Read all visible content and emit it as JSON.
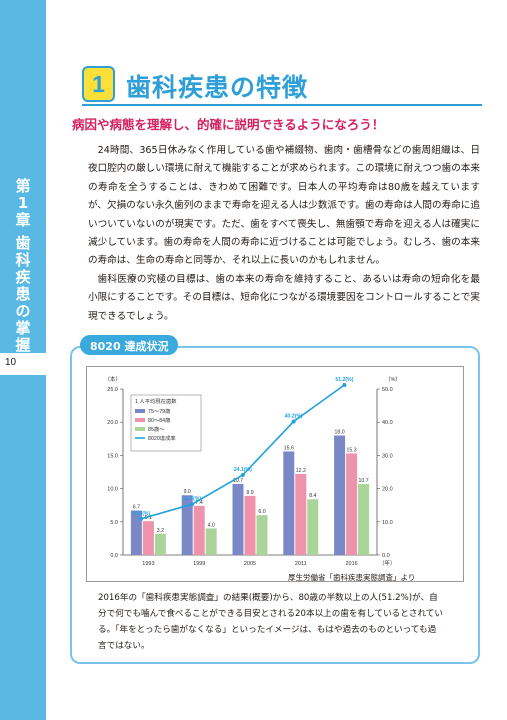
{
  "sidebar": {
    "chapter_chars": [
      "第",
      "1",
      "章",
      "",
      "歯",
      "科",
      "疾",
      "患",
      "の",
      "掌",
      "握"
    ],
    "page_number": "10"
  },
  "heading": {
    "number": "1",
    "title": "歯科疾患の特徴",
    "subtitle": "病因や病態を理解し、的確に説明できるようになろう！"
  },
  "body": {
    "paragraph1": "24時間、365日休みなく作用している歯や補綴物、歯肉・歯槽骨などの歯周組織は、日夜口腔内の厳しい環境に耐えて機能することが求められます。この環境に耐えつつ歯の本来の寿命を全うすることは、きわめて困難です。日本人の平均寿命は80歳を越えていますが、欠損のない永久歯列のままで寿命を迎える人は少数派です。歯の寿命は人間の寿命に追いついていないのが現実です。ただ、歯をすべて喪失し、無歯顎で寿命を迎える人は確実に減少しています。歯の寿命を人間の寿命に近づけることは可能でしょう。むしろ、歯の本来の寿命は、生命の寿命と同等か、それ以上に長いのかもしれません。",
    "paragraph2": "歯科医療の究極の目標は、歯の本来の寿命を維持すること、あるいは寿命の短命化を最小限にすることです。その目標は、短命化につながる環境要因をコントロールすることで実現できるでしょう。"
  },
  "figure": {
    "box_label": "8020 達成状況",
    "source": "厚生労働省「歯科疾患実態調査」より",
    "caption": "2016年の「歯科疾患実態調査」の結果(概要)から、80歳の半数以上の人(51.2%)が、自分で何でも噛んで食べることができる目安とされる20本以上の歯を有しているとされている。「年をとったら歯がなくなる」といったイメージは、もはや過去のものといっても過言ではない。"
  },
  "chart_data": {
    "type": "bar",
    "categories": [
      "1993",
      "1999",
      "2005",
      "2011",
      "2016"
    ],
    "x_unit": "（年）",
    "y_left_unit": "（本）",
    "y_right_unit": "（%）",
    "ylim_left": [
      0,
      25
    ],
    "ylim_right": [
      0,
      50
    ],
    "yticks_left": [
      "0.0",
      "5.0",
      "10.0",
      "15.0",
      "20.0",
      "25.0"
    ],
    "yticks_right": [
      "0.0",
      "10.0",
      "20.0",
      "30.0",
      "40.0",
      "50.0"
    ],
    "legend_title": "1 人平均現在歯数",
    "series": [
      {
        "name": "75～79歳",
        "values": [
          6.7,
          9.0,
          10.7,
          15.6,
          18.0
        ],
        "labels": [
          "6.7",
          "9.0",
          "10.7",
          "15.6",
          "18.0"
        ],
        "color": "#7b88c8"
      },
      {
        "name": "80～84歳",
        "values": [
          5.1,
          7.4,
          8.9,
          12.2,
          15.3
        ],
        "labels": [
          "5.1",
          "7.4",
          "8.9",
          "12.2",
          "15.3"
        ],
        "color": "#ee93ab"
      },
      {
        "name": "85歳～",
        "values": [
          3.2,
          4.0,
          6.0,
          8.4,
          10.7
        ],
        "labels": [
          "3.2",
          "4.0",
          "6.0",
          "8.4",
          "10.7"
        ],
        "color": "#abd49a"
      }
    ],
    "line_series": {
      "name": "8020達成率",
      "values": [
        10.9,
        15.3,
        24.1,
        40.2,
        51.2
      ],
      "labels": [
        "10.9(%)",
        "15.3(%)",
        "24.1(%)",
        "40.2(%)",
        "51.2(%)"
      ],
      "color": "#21a2dd"
    },
    "legend_position": "top-left",
    "grid": false
  },
  "colors": {
    "accent_blue": "#2f9fd8",
    "sidebar_blue": "#59b8e4",
    "subtitle_red": "#d5205f",
    "number_yellow": "#fbe03a"
  }
}
